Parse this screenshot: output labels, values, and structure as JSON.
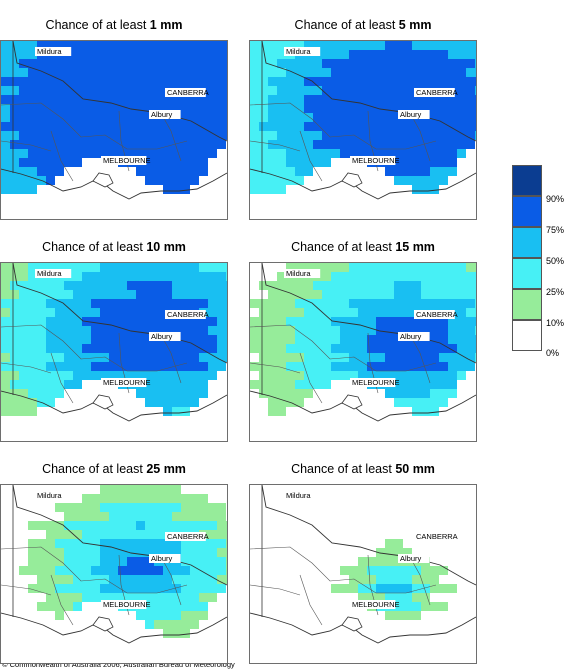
{
  "panels": [
    {
      "prefix": "Chance of at least",
      "amount": "1 mm"
    },
    {
      "prefix": "Chance of at least",
      "amount": "5 mm"
    },
    {
      "prefix": "Chance of at least",
      "amount": "10 mm"
    },
    {
      "prefix": "Chance of at least",
      "amount": "15 mm"
    },
    {
      "prefix": "Chance of at least",
      "amount": "25 mm"
    },
    {
      "prefix": "Chance of at least",
      "amount": "50 mm"
    }
  ],
  "cities": {
    "mildura": "Mildura",
    "canberra": "CANBERRA",
    "albury": "Albury",
    "melbourne": "MELBOURNE"
  },
  "legend": [
    {
      "label": "90%",
      "color": "#0b3d91"
    },
    {
      "label": "75%",
      "color": "#0a5ce6"
    },
    {
      "label": "50%",
      "color": "#19bff2"
    },
    {
      "label": "25%",
      "color": "#47f0f5"
    },
    {
      "label": "10%",
      "color": "#96ec9a"
    },
    {
      "label": "0%",
      "color": "#ffffff"
    }
  ],
  "copyright": "© Commonwealth of Australia 2006, Australian Bureau of Meteorology"
}
